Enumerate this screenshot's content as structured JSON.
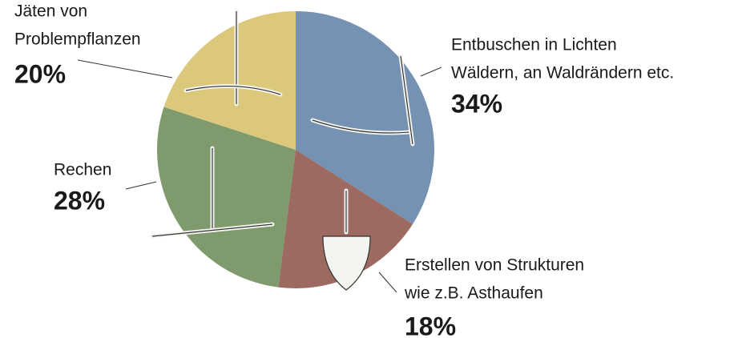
{
  "chart_data": {
    "type": "pie",
    "categories": [
      [
        "Entbuschen in Lichten",
        "Wäldern, an Waldrändern etc."
      ],
      [
        "Erstellen von Strukturen",
        "wie z.B. Asthaufen"
      ],
      [
        "Rechen"
      ],
      [
        "Jäten von",
        "Problempflanzen"
      ]
    ],
    "values": [
      34,
      18,
      28,
      20
    ],
    "value_labels": [
      "34%",
      "18%",
      "28%",
      "20%"
    ],
    "colors": [
      "#7592b2",
      "#9c6a60",
      "#7f9a6c",
      "#dcc87a"
    ]
  }
}
